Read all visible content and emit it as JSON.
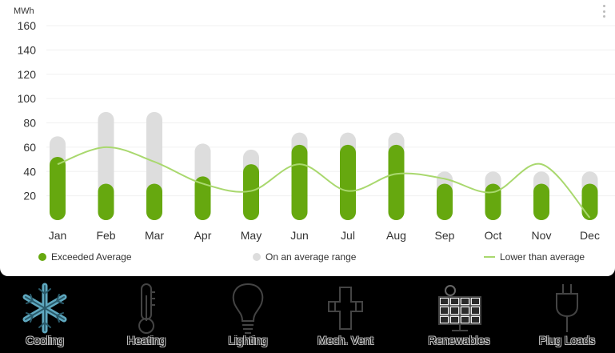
{
  "chart_data": {
    "type": "bar",
    "unit_label": "MWh",
    "categories": [
      "Jan",
      "Feb",
      "Mar",
      "Apr",
      "May",
      "Jun",
      "Jul",
      "Aug",
      "Sep",
      "Oct",
      "Nov",
      "Dec"
    ],
    "ylim": [
      0,
      160
    ],
    "yticks": [
      20,
      40,
      60,
      80,
      100,
      120,
      140,
      160
    ],
    "grid": true,
    "series": [
      {
        "name": "Exceeded Average",
        "type": "bar",
        "color": "#66a80f",
        "values": [
          52,
          30,
          30,
          36,
          46,
          62,
          62,
          62,
          30,
          30,
          30,
          30
        ]
      },
      {
        "name": "On an average range",
        "type": "range-bar",
        "color": "#dddddd",
        "values": [
          69,
          89,
          89,
          63,
          58,
          72,
          72,
          72,
          40,
          40,
          40,
          40
        ]
      },
      {
        "name": "Lower than average",
        "type": "line",
        "color": "#a9d86e",
        "values": [
          46,
          60,
          48,
          30,
          24,
          46,
          24,
          38,
          34,
          23,
          46,
          2
        ]
      }
    ],
    "legend": {
      "position": "bottom"
    }
  },
  "categories": [
    {
      "label": "Cooling",
      "icon": "snowflake-icon"
    },
    {
      "label": "Heating",
      "icon": "thermometer-icon"
    },
    {
      "label": "Lighting",
      "icon": "lightbulb-icon"
    },
    {
      "label": "Mech. Vent",
      "icon": "duct-icon"
    },
    {
      "label": "Renewables",
      "icon": "solar-panel-icon"
    },
    {
      "label": "Plug Loads",
      "icon": "plug-icon"
    }
  ]
}
